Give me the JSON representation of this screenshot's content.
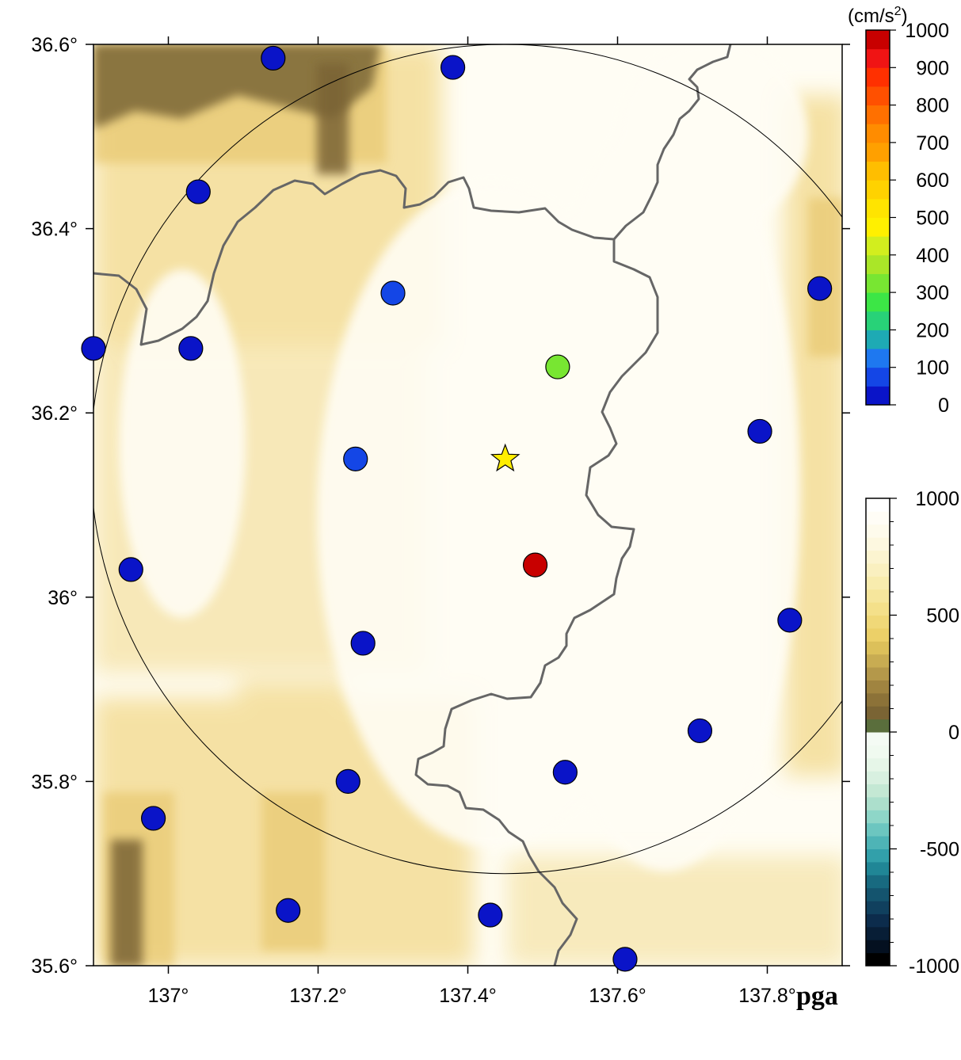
{
  "map": {
    "title": "pga",
    "lon_range": [
      136.9,
      137.9
    ],
    "lat_range": [
      35.6,
      36.6
    ],
    "x_ticks": [
      {
        "value": 137.0,
        "label": "137°"
      },
      {
        "value": 137.2,
        "label": "137.2°"
      },
      {
        "value": 137.4,
        "label": "137.4°"
      },
      {
        "value": 137.6,
        "label": "137.6°"
      },
      {
        "value": 137.8,
        "label": "137.8°"
      }
    ],
    "y_ticks": [
      {
        "value": 35.6,
        "label": "35.6°"
      },
      {
        "value": 35.8,
        "label": "35.8°"
      },
      {
        "value": 36.0,
        "label": "36°"
      },
      {
        "value": 36.2,
        "label": "36.2°"
      },
      {
        "value": 36.4,
        "label": "36.4°"
      },
      {
        "value": 36.6,
        "label": "36.6°"
      }
    ],
    "epicenter": {
      "lon": 137.45,
      "lat": 36.15,
      "icon": "star-icon",
      "color": "#ffee00"
    },
    "range_circle": {
      "center_lon": 137.45,
      "center_lat": 36.15,
      "radius_deg_lat": 0.45
    },
    "stations": [
      {
        "lon": 137.14,
        "lat": 36.585,
        "pga": 40
      },
      {
        "lon": 137.38,
        "lat": 36.575,
        "pga": 40
      },
      {
        "lon": 137.04,
        "lat": 36.44,
        "pga": 40
      },
      {
        "lon": 137.3,
        "lat": 36.33,
        "pga": 60
      },
      {
        "lon": 137.87,
        "lat": 36.335,
        "pga": 40
      },
      {
        "lon": 136.9,
        "lat": 36.27,
        "pga": 40
      },
      {
        "lon": 137.03,
        "lat": 36.27,
        "pga": 40
      },
      {
        "lon": 137.52,
        "lat": 36.25,
        "pga": 320
      },
      {
        "lon": 137.79,
        "lat": 36.18,
        "pga": 40
      },
      {
        "lon": 137.25,
        "lat": 36.15,
        "pga": 60
      },
      {
        "lon": 136.95,
        "lat": 36.03,
        "pga": 40
      },
      {
        "lon": 137.49,
        "lat": 36.035,
        "pga": 960
      },
      {
        "lon": 137.83,
        "lat": 35.975,
        "pga": 40
      },
      {
        "lon": 137.26,
        "lat": 35.95,
        "pga": 40
      },
      {
        "lon": 137.71,
        "lat": 35.855,
        "pga": 40
      },
      {
        "lon": 137.53,
        "lat": 35.81,
        "pga": 40
      },
      {
        "lon": 137.24,
        "lat": 35.8,
        "pga": 40
      },
      {
        "lon": 136.98,
        "lat": 35.76,
        "pga": 40
      },
      {
        "lon": 137.16,
        "lat": 35.66,
        "pga": 40
      },
      {
        "lon": 137.43,
        "lat": 35.655,
        "pga": 40
      },
      {
        "lon": 137.61,
        "lat": 35.607,
        "pga": 40
      }
    ]
  },
  "pga_scale": {
    "unit_label": "(cm/s",
    "unit_sup": "2",
    "unit_close": ")",
    "range": [
      0,
      1000
    ],
    "tick_labels": [
      "0",
      "100",
      "200",
      "300",
      "400",
      "500",
      "600",
      "700",
      "800",
      "900",
      "1000"
    ],
    "colors": [
      "#0a14c8",
      "#1446e6",
      "#1e78f0",
      "#1eaab4",
      "#28d278",
      "#3ce646",
      "#78e632",
      "#aae628",
      "#d2ee1e",
      "#fff000",
      "#ffe400",
      "#ffd200",
      "#ffbe00",
      "#ffa000",
      "#ff8c00",
      "#ff7000",
      "#ff5000",
      "#ff3000",
      "#f01414",
      "#c80000"
    ]
  },
  "elevation_scale": {
    "range": [
      -1000,
      1000
    ],
    "tick_labels": [
      "-1000",
      "-500",
      "0",
      "500",
      "1000"
    ],
    "tick_values": [
      -1000,
      -500,
      0,
      500,
      1000
    ],
    "colors": [
      "#000000",
      "#041020",
      "#081e36",
      "#0c2c4c",
      "#10405e",
      "#14546e",
      "#186a80",
      "#208696",
      "#32a0aa",
      "#4eb4b6",
      "#6cc6c0",
      "#8ed6c8",
      "#acdfcc",
      "#c4e8d4",
      "#d8f0e0",
      "#e6f6e8",
      "#f0faf0",
      "#f4fbf4",
      "#5a6e3c",
      "#7a6434",
      "#8c7238",
      "#a08440",
      "#b4984a",
      "#c8ac52",
      "#dcc05a",
      "#ecd068",
      "#f0d878",
      "#f4e08a",
      "#f6e69c",
      "#f8ecae",
      "#faf0c0",
      "#fcf4d0",
      "#fdf8e0",
      "#fefbec",
      "#fffdf6",
      "#ffffff"
    ]
  },
  "colors": {
    "boundary": "#666666",
    "station_outline": "#000000",
    "terrain_light": "#fffdf4",
    "terrain_mid": "#f3dc96",
    "terrain_dark": "#7d6a3c"
  }
}
